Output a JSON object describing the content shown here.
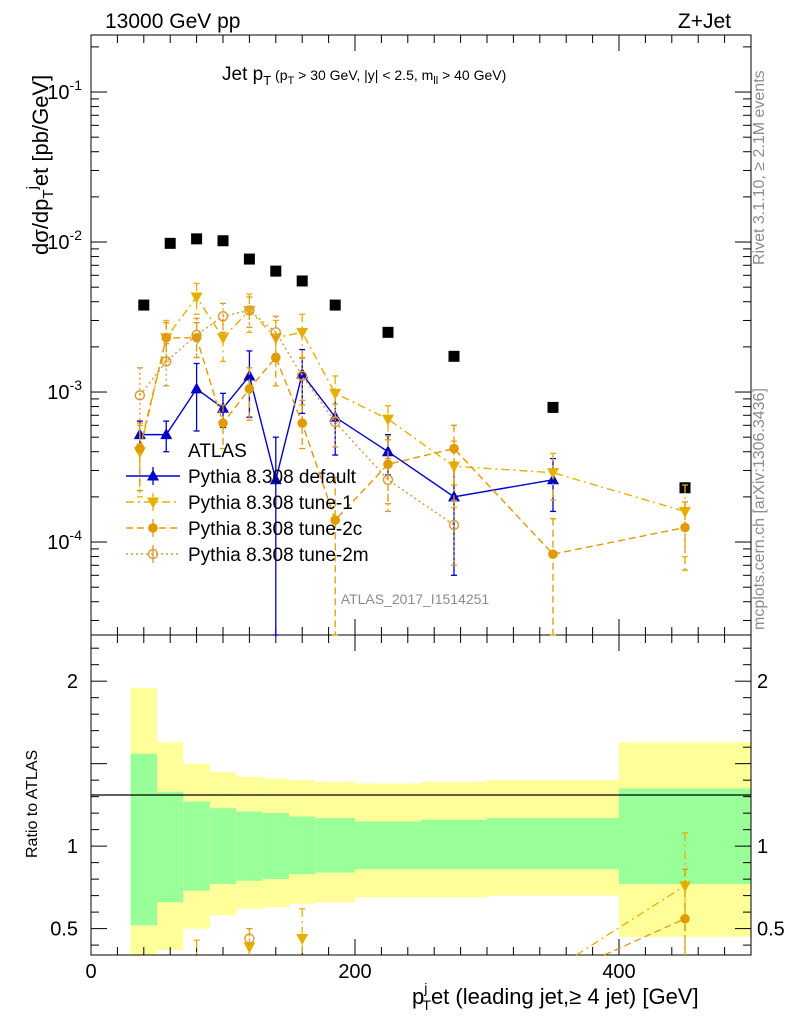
{
  "header": {
    "left": "13000 GeV pp",
    "right": "Z+Jet",
    "side_top": "Rivet 3.1.10, ≥ 2.1M events",
    "side_bottom": "mcplots.cern.ch [arXiv:1306.3436]",
    "analysis": "ATLAS_2017_I1514251"
  },
  "main_title": {
    "part1": "Jet p",
    "sub1": "T",
    "part2": " (p",
    "sub2": "T",
    "part3": " > 30 GeV, |y| < 2.5, m",
    "sub3": "ll",
    "part4": " > 40 GeV)"
  },
  "axes": {
    "ylabel_main": "dσ/dp",
    "ylabel_main_sub": "T",
    "ylabel_main_sup": "j",
    "ylabel_main_tail": "et [pb/GeV]",
    "ylabel_ratio": "Ratio to ATLAS",
    "xlabel_p": "p",
    "xlabel_sup": "j",
    "xlabel_sub": "T",
    "xlabel_tail": "et (leading jet,≥ 4 jet) [GeV]"
  },
  "colors": {
    "data": "#000000",
    "default": "#0000cc",
    "tune1": "#e6b000",
    "tune2c": "#e09b00",
    "tune2m": "#d99a33",
    "band_inner": "#99ff99",
    "band_outer": "#ffff99"
  },
  "chart_data": {
    "type": "scatter",
    "xlim": [
      0,
      500
    ],
    "ylim_main": [
      2.4e-05,
      0.24
    ],
    "ylim_ratio": [
      0.34,
      2.28
    ],
    "y_scale_main": "log",
    "x_ticks": [
      0,
      200,
      400
    ],
    "x_tick_labels": [
      "0",
      "200",
      "400"
    ],
    "y_ticks_main": [
      0.0001,
      0.001,
      0.01,
      0.1
    ],
    "y_tick_labels_main": [
      "10^-4",
      "10^-3",
      "10^-2",
      "10^-1"
    ],
    "y_ticks_ratio": [
      0.5,
      1,
      2
    ],
    "y_tick_labels_ratio": [
      "0.5",
      "1",
      "2"
    ],
    "legend_position": "lower-left",
    "bins": [
      [
        30,
        50
      ],
      [
        50,
        70
      ],
      [
        70,
        90
      ],
      [
        90,
        110
      ],
      [
        110,
        130
      ],
      [
        130,
        150
      ],
      [
        150,
        170
      ],
      [
        170,
        200
      ],
      [
        200,
        250
      ],
      [
        250,
        300
      ],
      [
        300,
        400
      ],
      [
        400,
        500
      ]
    ],
    "series": [
      {
        "name": "ATLAS",
        "style": "data",
        "x": [
          40,
          60,
          80,
          100,
          120,
          140,
          160,
          185,
          225,
          275,
          350,
          450
        ],
        "y": [
          0.0038,
          0.0098,
          0.0105,
          0.0102,
          0.0077,
          0.0064,
          0.0055,
          0.0038,
          0.0025,
          0.00173,
          0.00079,
          0.00023
        ]
      },
      {
        "name": "Pythia 8.308 default",
        "style": "default",
        "x": [
          37,
          57,
          80,
          100,
          120,
          140,
          160,
          185,
          225,
          275,
          350
        ],
        "y": [
          0.00052,
          0.00052,
          0.00105,
          0.00078,
          0.00128,
          0.00026,
          0.00132,
          0.00068,
          0.0004,
          0.0002,
          0.00026
        ],
        "err": [
          0.00012,
          0.00012,
          0.0005,
          0.0002,
          0.0006,
          0.00024,
          0.0006,
          0.0003,
          0.00012,
          0.00014,
          0.0001
        ]
      },
      {
        "name": "Pythia 8.308 tune-1",
        "style": "tune1",
        "x": [
          37,
          57,
          80,
          100,
          120,
          140,
          160,
          185,
          225,
          275,
          350,
          450
        ],
        "y": [
          0.0004,
          0.0023,
          0.0043,
          0.0023,
          0.0035,
          0.0023,
          0.0025,
          0.00098,
          0.00066,
          0.00032,
          0.00029,
          0.00016
        ],
        "err": [
          0.0002,
          0.0007,
          0.001,
          0.0007,
          0.001,
          0.0007,
          0.0008,
          0.0003,
          0.00015,
          0.00015,
          0.0001,
          8e-05
        ]
      },
      {
        "name": "Pythia 8.308 tune-2c",
        "style": "tune2c",
        "x": [
          37,
          57,
          80,
          100,
          120,
          140,
          160,
          185,
          225,
          275,
          350,
          450
        ],
        "y": [
          0.00042,
          0.0023,
          0.0023,
          0.00062,
          0.00105,
          0.0017,
          0.00062,
          0.00014,
          0.00033,
          0.00042,
          8.3e-05,
          0.000125
        ],
        "err": [
          0.0002,
          0.0006,
          0.0006,
          0.0002,
          0.0004,
          0.0006,
          0.0002,
          0.00013,
          0.00015,
          0.00018,
          6e-05,
          6e-05
        ]
      },
      {
        "name": "Pythia 8.308 tune-2m",
        "style": "tune2m",
        "x": [
          37,
          57,
          80,
          100,
          120,
          140,
          160,
          185,
          225,
          275
        ],
        "y": [
          0.00095,
          0.0016,
          0.0024,
          0.0032,
          0.0035,
          0.0025,
          0.00128,
          0.00063,
          0.00026,
          0.00013
        ],
        "err": [
          0.0005,
          0.0005,
          0.0007,
          0.0007,
          0.0008,
          0.0007,
          0.0004,
          0.0002,
          0.0001,
          6e-05
        ]
      }
    ],
    "ratio_band_inner": [
      [
        0.52,
        1.56
      ],
      [
        0.66,
        1.33
      ],
      [
        0.73,
        1.27
      ],
      [
        0.77,
        1.23
      ],
      [
        0.79,
        1.21
      ],
      [
        0.8,
        1.2
      ],
      [
        0.83,
        1.18
      ],
      [
        0.84,
        1.17
      ],
      [
        0.86,
        1.15
      ],
      [
        0.86,
        1.16
      ],
      [
        0.86,
        1.17
      ],
      [
        0.77,
        1.35
      ]
    ],
    "ratio_band_outer": [
      [
        0.3,
        1.96
      ],
      [
        0.37,
        1.63
      ],
      [
        0.5,
        1.5
      ],
      [
        0.58,
        1.45
      ],
      [
        0.62,
        1.42
      ],
      [
        0.63,
        1.41
      ],
      [
        0.65,
        1.4
      ],
      [
        0.66,
        1.39
      ],
      [
        0.69,
        1.38
      ],
      [
        0.69,
        1.39
      ],
      [
        0.7,
        1.4
      ],
      [
        0.45,
        1.63
      ]
    ],
    "ratio_points": [
      {
        "style": "tune1",
        "x": 80,
        "y": 0.33,
        "err_up": 0.1
      },
      {
        "style": "tune1",
        "x": 120,
        "y": 0.39,
        "err_up": 0.11
      },
      {
        "style": "tune1",
        "x": 160,
        "y": 0.44,
        "err_up": 0.18
      },
      {
        "style": "tune2m",
        "x": 120,
        "y": 0.44,
        "err_up": 0.06
      },
      {
        "style": "tune1",
        "x": 450,
        "y": 0.76,
        "err_up": 0.32
      },
      {
        "style": "tune2c",
        "x": 450,
        "y": 0.56,
        "err_up": 0.3
      }
    ]
  }
}
